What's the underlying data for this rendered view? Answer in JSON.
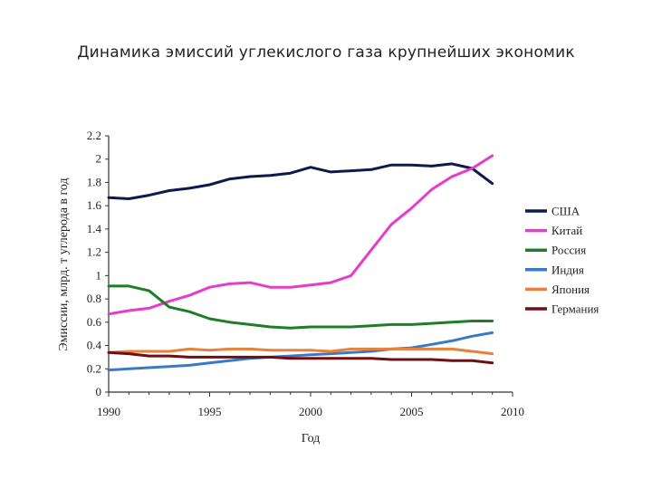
{
  "title": "Динамика эмиссий углекислого газа крупнейших экономик",
  "chart_data": {
    "type": "line",
    "title": "",
    "xlabel": "Год",
    "ylabel": "Эмиссии, млрд. т углерода в год",
    "xlim": [
      1990,
      2010
    ],
    "ylim": [
      0,
      2.2
    ],
    "x_ticks": [
      "1990",
      "1995",
      "2000",
      "2005",
      "2010"
    ],
    "y_ticks": [
      "0",
      "0.2",
      "0.4",
      "0.6",
      "0.8",
      "1",
      "1.2",
      "1.4",
      "1.6",
      "1.8",
      "2",
      "2.2"
    ],
    "grid": false,
    "legend_position": "right",
    "x": [
      1990,
      1991,
      1992,
      1993,
      1994,
      1995,
      1996,
      1997,
      1998,
      1999,
      2000,
      2001,
      2002,
      2003,
      2004,
      2005,
      2006,
      2007,
      2008,
      2009
    ],
    "series": [
      {
        "name": "США",
        "color": "#0d1b4c",
        "values": [
          1.67,
          1.66,
          1.69,
          1.73,
          1.75,
          1.78,
          1.83,
          1.85,
          1.86,
          1.88,
          1.93,
          1.89,
          1.9,
          1.91,
          1.95,
          1.95,
          1.94,
          1.96,
          1.92,
          1.79
        ]
      },
      {
        "name": "Китай",
        "color": "#e63cc8",
        "values": [
          0.67,
          0.7,
          0.72,
          0.78,
          0.83,
          0.9,
          0.93,
          0.94,
          0.9,
          0.9,
          0.92,
          0.94,
          1.0,
          1.22,
          1.44,
          1.58,
          1.74,
          1.85,
          1.92,
          2.03
        ]
      },
      {
        "name": "Россия",
        "color": "#1e7d28",
        "values": [
          0.91,
          0.91,
          0.87,
          0.73,
          0.69,
          0.63,
          0.6,
          0.58,
          0.56,
          0.55,
          0.56,
          0.56,
          0.56,
          0.57,
          0.58,
          0.58,
          0.59,
          0.6,
          0.61,
          0.61
        ]
      },
      {
        "name": "Индия",
        "color": "#3a78c8",
        "values": [
          0.19,
          0.2,
          0.21,
          0.22,
          0.23,
          0.25,
          0.27,
          0.29,
          0.3,
          0.31,
          0.32,
          0.33,
          0.34,
          0.35,
          0.37,
          0.38,
          0.41,
          0.44,
          0.48,
          0.51
        ]
      },
      {
        "name": "Япония",
        "color": "#e8823a",
        "values": [
          0.34,
          0.35,
          0.35,
          0.35,
          0.37,
          0.36,
          0.37,
          0.37,
          0.36,
          0.36,
          0.36,
          0.35,
          0.37,
          0.37,
          0.37,
          0.37,
          0.37,
          0.37,
          0.35,
          0.33
        ]
      },
      {
        "name": "Германия",
        "color": "#6e0f12",
        "values": [
          0.34,
          0.33,
          0.31,
          0.31,
          0.3,
          0.3,
          0.3,
          0.3,
          0.3,
          0.29,
          0.29,
          0.29,
          0.29,
          0.29,
          0.28,
          0.28,
          0.28,
          0.27,
          0.27,
          0.25
        ]
      }
    ]
  }
}
